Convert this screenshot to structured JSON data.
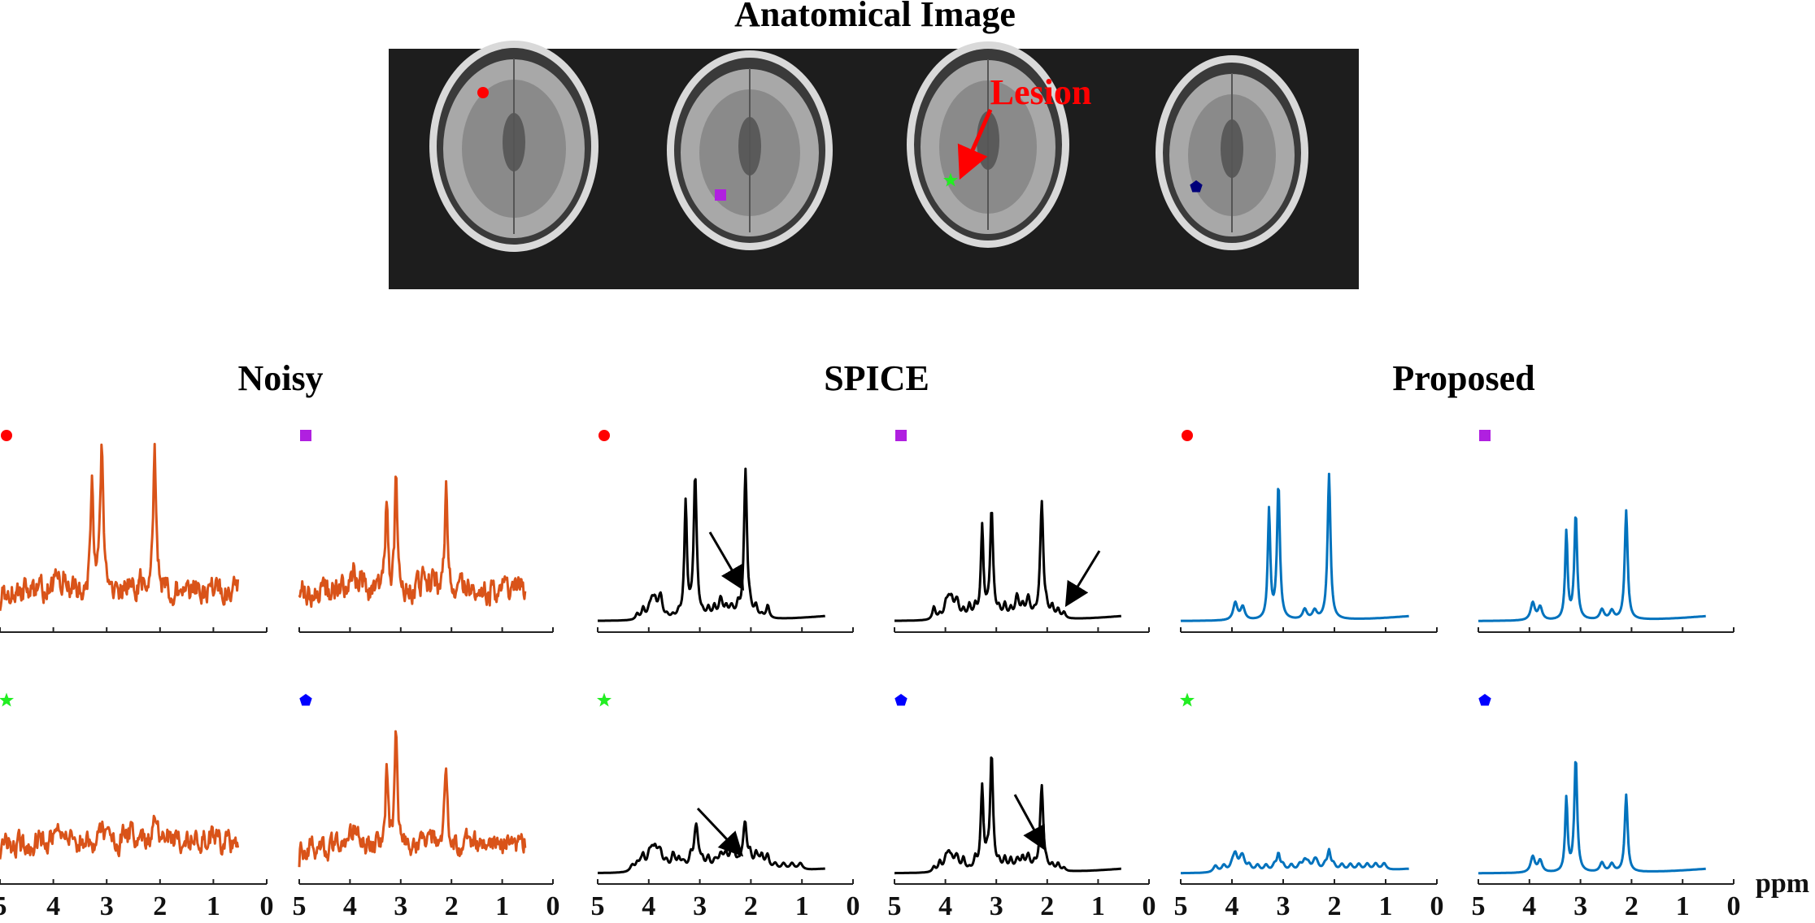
{
  "figure": {
    "title": "Anatomical Image",
    "annotation": "Lesion",
    "colors": {
      "noisy": "#D95319",
      "spice": "#000000",
      "proposed": "#0072BD",
      "lesion": "#FF0000",
      "marker_circle": "#FF0000",
      "marker_square": "#B020E0",
      "marker_star": "#22EE22",
      "marker_pentagon": "#0000FF",
      "marker_pentagon_on_image": "#00007A"
    },
    "anatomical_markers": [
      {
        "slice": 1,
        "icon": "circle-marker-icon"
      },
      {
        "slice": 2,
        "icon": "square-marker-icon"
      },
      {
        "slice": 3,
        "icon": "star-marker-icon"
      },
      {
        "slice": 4,
        "icon": "pentagon-marker-icon"
      }
    ]
  },
  "chart_data": {
    "type": "line",
    "x_axis": {
      "label": "ppm",
      "ticks": [
        5,
        4,
        3,
        2,
        1,
        0
      ],
      "range": [
        5,
        0
      ],
      "reversed": true
    },
    "methods": [
      "Noisy",
      "SPICE",
      "Proposed"
    ],
    "method_colors": [
      "#D95319",
      "#000000",
      "#0072BD"
    ],
    "voxels": [
      {
        "marker": "circle-marker-icon",
        "color": "#FF0000"
      },
      {
        "marker": "square-marker-icon",
        "color": "#B020E0"
      },
      {
        "marker": "star-marker-icon",
        "color": "#22EE22"
      },
      {
        "marker": "pentagon-marker-icon",
        "color": "#0000FF"
      }
    ],
    "grid": false,
    "arrows_on": [
      {
        "method": "SPICE",
        "voxel": 0,
        "near_ppm": 2.2
      },
      {
        "method": "SPICE",
        "voxel": 1,
        "near_ppm": 1.8
      },
      {
        "method": "SPICE",
        "voxel": 2,
        "near_ppm": 2.2
      },
      {
        "method": "SPICE",
        "voxel": 3,
        "near_ppm": 2.2
      }
    ]
  }
}
